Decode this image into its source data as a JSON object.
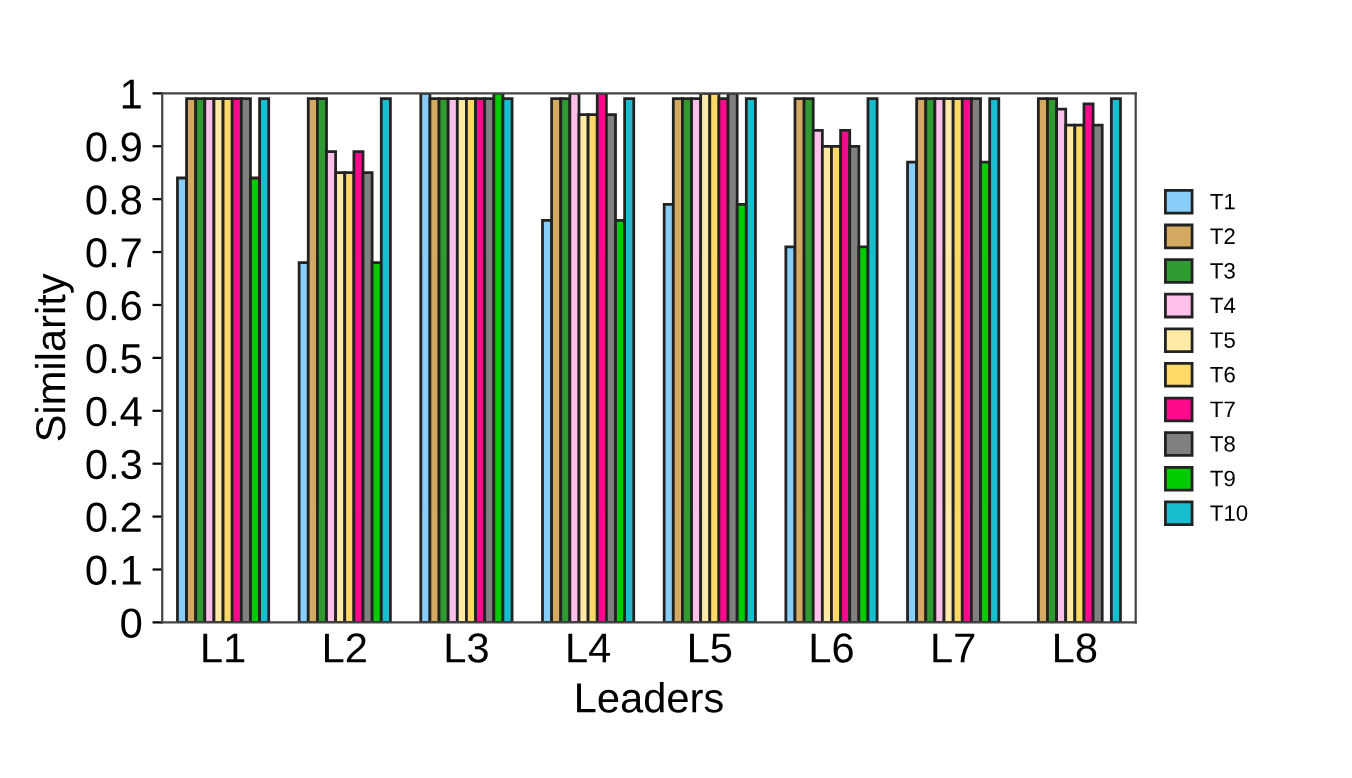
{
  "chart_data": {
    "type": "bar",
    "xlabel": "Leaders",
    "ylabel": "Similarity",
    "categories": [
      "L1",
      "L2",
      "L3",
      "L4",
      "L5",
      "L6",
      "L7",
      "L8"
    ],
    "ylim": [
      0,
      1
    ],
    "yticks": [
      0,
      0.1,
      0.2,
      0.3,
      0.4,
      0.5,
      0.6,
      0.7,
      0.8,
      0.9,
      1
    ],
    "grid": false,
    "legend": "right",
    "series": [
      {
        "name": "T1",
        "color": "#87cefa",
        "values": [
          0.84,
          0.68,
          1.0,
          0.76,
          0.79,
          0.71,
          0.87,
          null
        ]
      },
      {
        "name": "T2",
        "color": "#d4aa62",
        "values": [
          0.99,
          0.99,
          0.99,
          0.99,
          0.99,
          0.99,
          0.99,
          0.99
        ]
      },
      {
        "name": "T3",
        "color": "#2f9a2f",
        "values": [
          0.99,
          0.99,
          0.99,
          0.99,
          0.99,
          0.99,
          0.99,
          0.99
        ]
      },
      {
        "name": "T4",
        "color": "#ffc0ea",
        "values": [
          0.99,
          0.89,
          0.99,
          1.0,
          0.99,
          0.93,
          0.99,
          0.97
        ]
      },
      {
        "name": "T5",
        "color": "#ffeaa6",
        "values": [
          0.99,
          0.85,
          0.99,
          0.96,
          1.0,
          0.9,
          0.99,
          0.94
        ]
      },
      {
        "name": "T6",
        "color": "#ffd966",
        "values": [
          0.99,
          0.85,
          0.99,
          0.96,
          1.0,
          0.9,
          0.99,
          0.94
        ]
      },
      {
        "name": "T7",
        "color": "#ff0a8c",
        "values": [
          0.99,
          0.89,
          0.99,
          1.0,
          0.99,
          0.93,
          0.99,
          0.98
        ]
      },
      {
        "name": "T8",
        "color": "#808080",
        "values": [
          0.99,
          0.85,
          0.99,
          0.96,
          1.0,
          0.9,
          0.99,
          0.94
        ]
      },
      {
        "name": "T9",
        "color": "#00cc00",
        "values": [
          0.84,
          0.68,
          1.0,
          0.76,
          0.79,
          0.71,
          0.87,
          null
        ]
      },
      {
        "name": "T10",
        "color": "#17becf",
        "values": [
          0.99,
          0.99,
          0.99,
          0.99,
          0.99,
          0.99,
          0.99,
          0.99
        ]
      }
    ]
  }
}
